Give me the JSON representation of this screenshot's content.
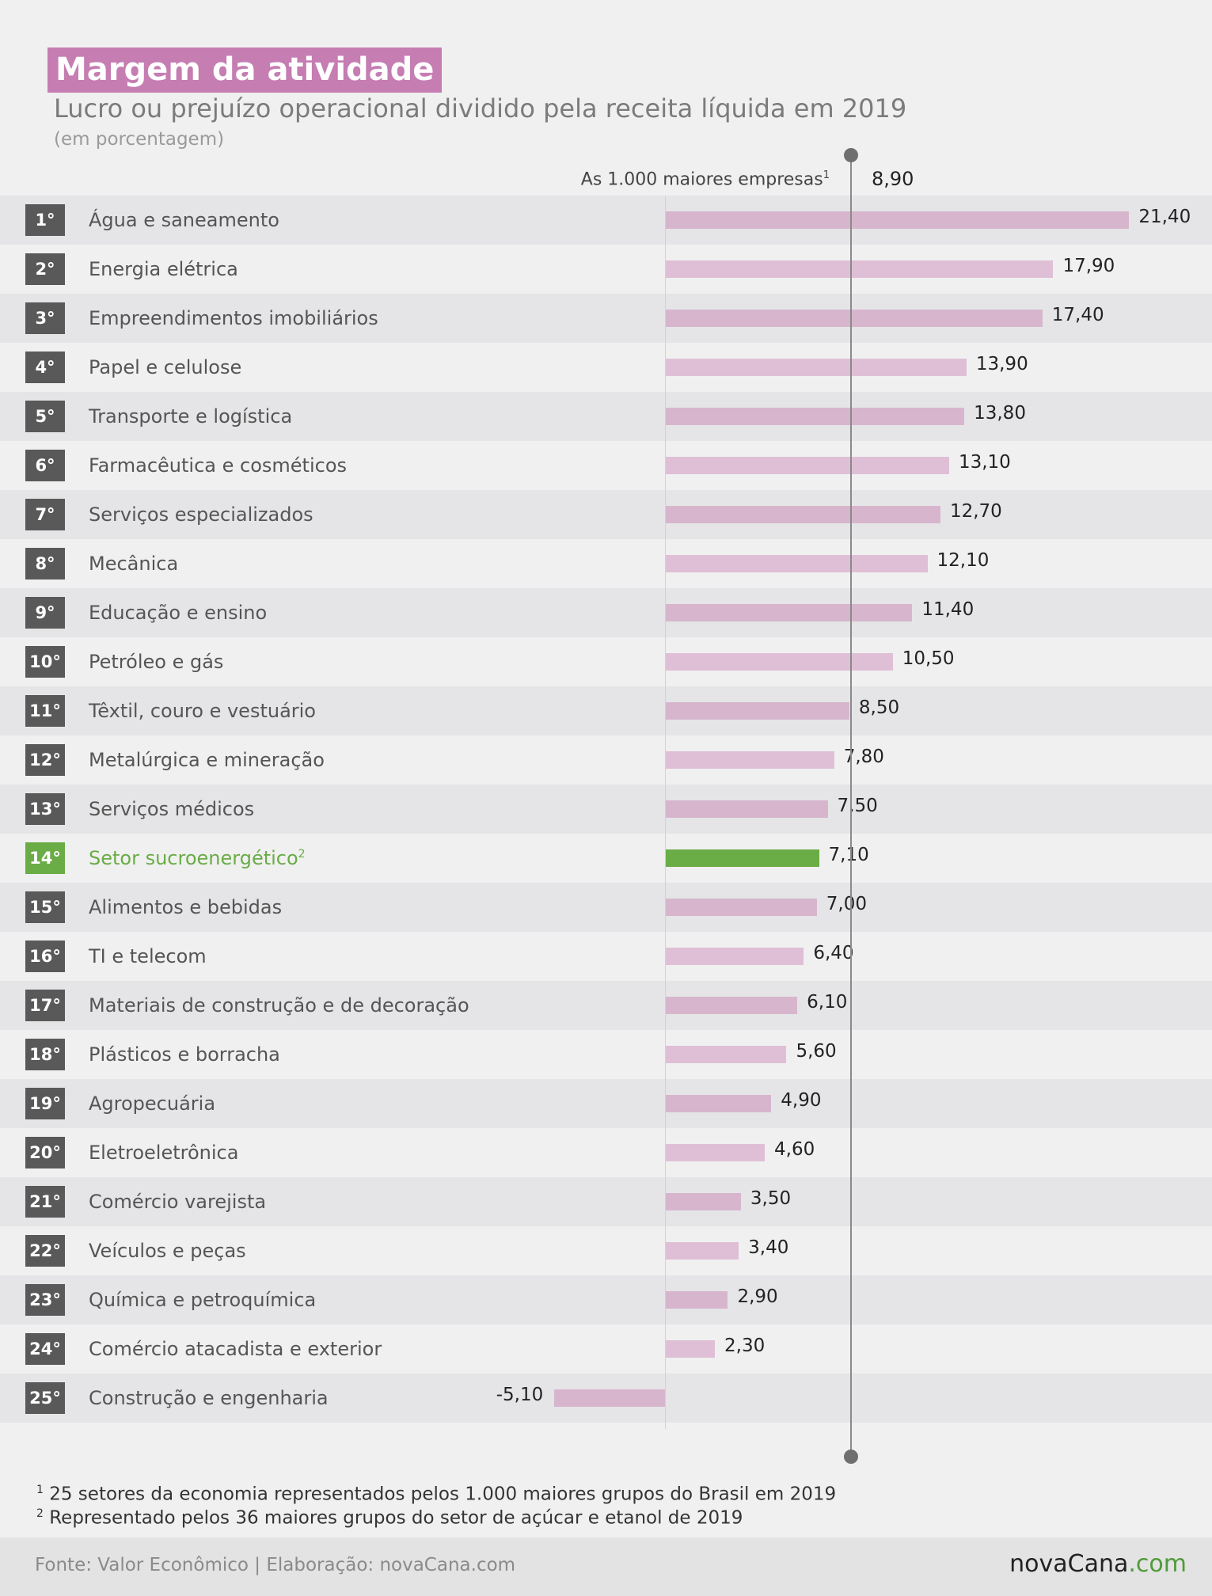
{
  "title": "Margem da atividade",
  "subtitle": "Lucro ou prejuízo operacional dividido pela receita líquida em 2019",
  "unit_note": "(em porcentagem)",
  "average": {
    "label": "As 1.000 maiores empresas",
    "marker": "1",
    "value": 8.9,
    "value_label": "8,90"
  },
  "chart_data": {
    "type": "bar",
    "orientation": "horizontal",
    "title": "Margem da atividade",
    "subtitle": "Lucro ou prejuízo operacional dividido pela receita líquida em 2019",
    "unit": "(em porcentagem)",
    "reference_line": {
      "label": "As 1.000 maiores empresas",
      "value": 8.9
    },
    "highlight_color": "#6aac46",
    "bar_color": "#dfbfd6",
    "ranks": [
      "1°",
      "2°",
      "3°",
      "4°",
      "5°",
      "6°",
      "7°",
      "8°",
      "9°",
      "10°",
      "11°",
      "12°",
      "13°",
      "14°",
      "15°",
      "16°",
      "17°",
      "18°",
      "19°",
      "20°",
      "21°",
      "22°",
      "23°",
      "24°",
      "25°"
    ],
    "categories": [
      "Água e saneamento",
      "Energia elétrica",
      "Empreendimentos imobiliários",
      "Papel e celulose",
      "Transporte e logística",
      "Farmacêutica e cosméticos",
      "Serviços especializados",
      "Mecânica",
      "Educação e ensino",
      "Petróleo e gás",
      "Têxtil, couro e vestuário",
      "Metalúrgica e mineração",
      "Serviços médicos",
      "Setor sucroenergético",
      "Alimentos e bebidas",
      "TI e telecom",
      "Materiais de construção e de decoração",
      "Plásticos e borracha",
      "Agropecuária",
      "Eletroeletrônica",
      "Comércio varejista",
      "Veículos e peças",
      "Química e petroquímica",
      "Comércio atacadista e exterior",
      "Construção e engenharia"
    ],
    "values": [
      21.4,
      17.9,
      17.4,
      13.9,
      13.8,
      13.1,
      12.7,
      12.1,
      11.4,
      10.5,
      8.5,
      7.8,
      7.5,
      7.1,
      7.0,
      6.4,
      6.1,
      5.6,
      4.9,
      4.6,
      3.5,
      3.4,
      2.9,
      2.3,
      -5.1
    ],
    "value_labels": [
      "21,40",
      "17,90",
      "17,40",
      "13,90",
      "13,80",
      "13,10",
      "12,70",
      "12,10",
      "11,40",
      "10,50",
      "8,50",
      "7,80",
      "7,50",
      "7,10",
      "7,00",
      "6,40",
      "6,10",
      "5,60",
      "4,90",
      "4,60",
      "3,50",
      "3,40",
      "2,90",
      "2,30",
      "-5,10"
    ],
    "highlight_index": 13,
    "highlight_marker": "2"
  },
  "footnotes": [
    {
      "marker": "1",
      "text": "25 setores da economia representados pelos 1.000 maiores grupos do Brasil em 2019"
    },
    {
      "marker": "2",
      "text": "Representado pelos 36 maiores grupos do setor de açúcar e etanol de 2019"
    }
  ],
  "source": "Fonte: Valor Econômico | Elaboração: novaCana.com",
  "logo": {
    "main": "novaCana",
    "suffix": ".com"
  }
}
